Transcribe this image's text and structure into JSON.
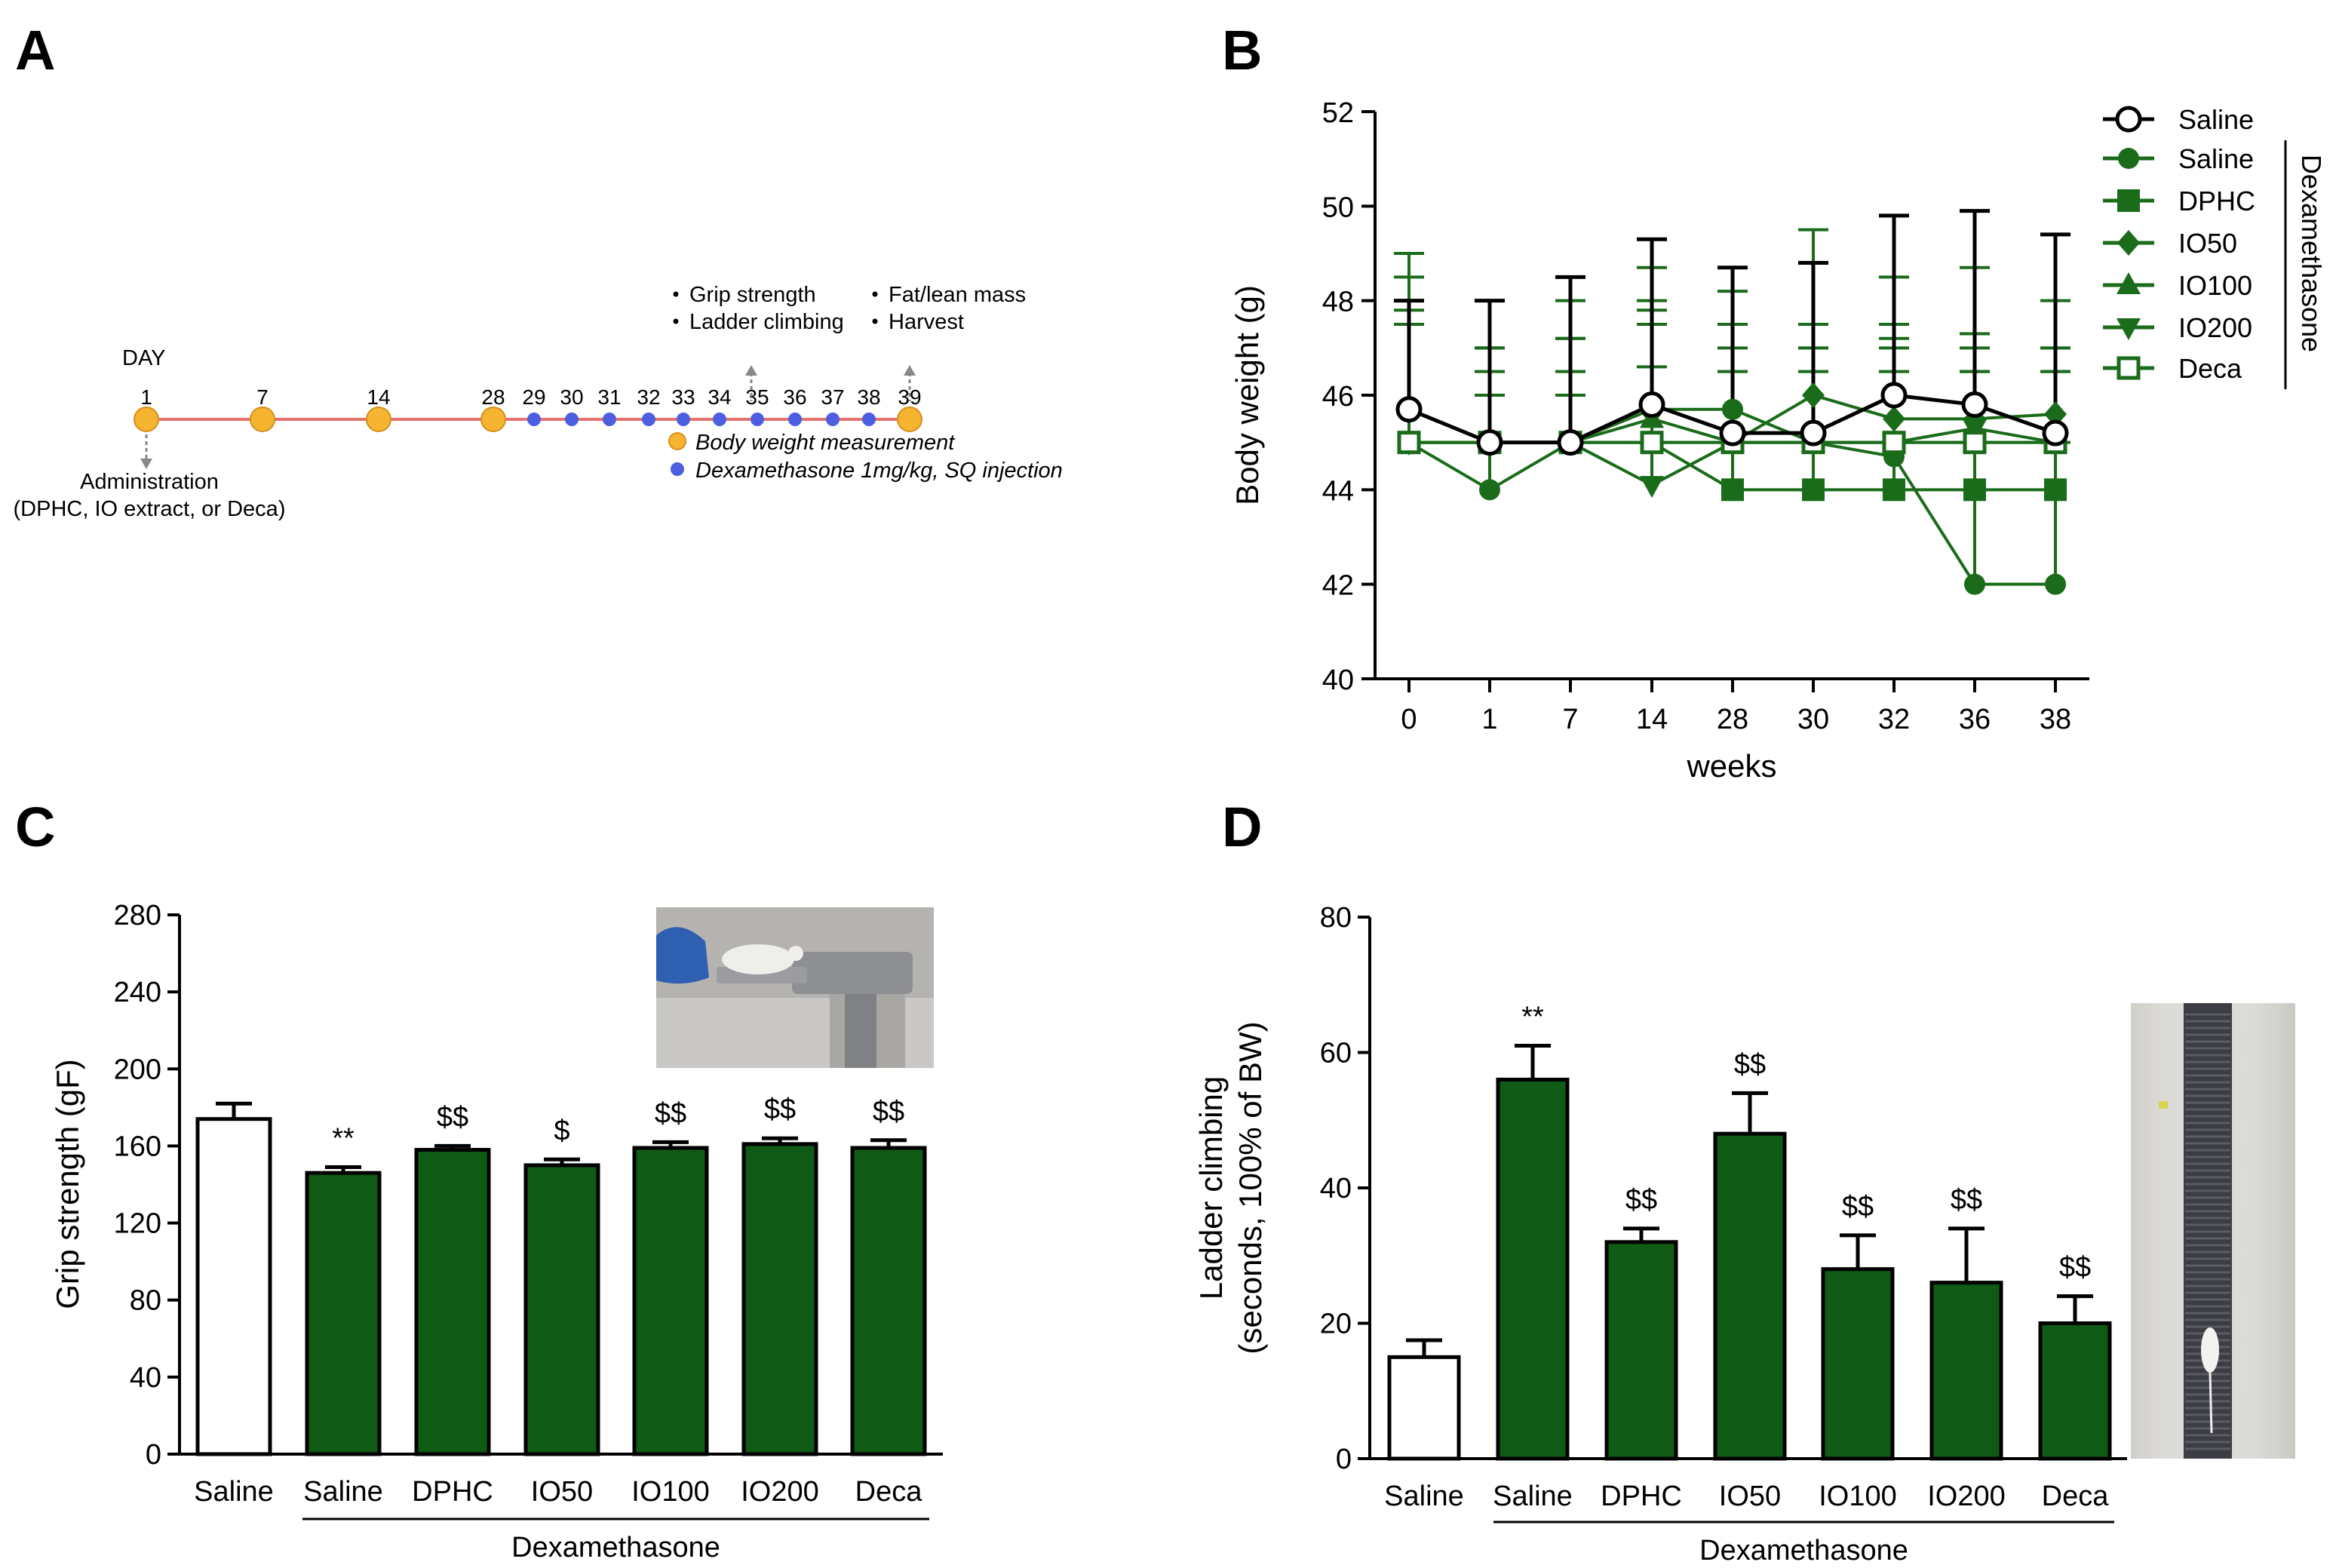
{
  "panels": {
    "a": "A",
    "b": "B",
    "c": "C",
    "d": "D"
  },
  "colors": {
    "green": "#1a6b1a",
    "darkGreen": "#0f5a14",
    "timeline": "#e8716b",
    "orangeDot": "#f6b431",
    "blueDot": "#4c5fe0",
    "black": "#000000"
  },
  "timeline": {
    "day_label": "DAY",
    "days": [
      {
        "label": "1",
        "kind": "orange"
      },
      {
        "label": "7",
        "kind": "orange"
      },
      {
        "label": "14",
        "kind": "orange"
      },
      {
        "label": "28",
        "kind": "orange"
      },
      {
        "label": "29",
        "kind": "blue"
      },
      {
        "label": "30",
        "kind": "blue"
      },
      {
        "label": "31",
        "kind": "blue"
      },
      {
        "label": "32",
        "kind": "blue"
      },
      {
        "label": "33",
        "kind": "blue"
      },
      {
        "label": "34",
        "kind": "blue"
      },
      {
        "label": "35",
        "kind": "blue"
      },
      {
        "label": "36",
        "kind": "blue"
      },
      {
        "label": "37",
        "kind": "blue"
      },
      {
        "label": "38",
        "kind": "blue"
      },
      {
        "label": "39",
        "kind": "orange"
      }
    ],
    "administration_label": "Administration",
    "administration_sub": "(DPHC, IO extract, or Deca)",
    "notes_day35": [
      "Grip strength",
      "Ladder climbing"
    ],
    "notes_day39": [
      "Fat/lean mass",
      "Harvest"
    ],
    "legend_body_weight": "Body weight measurement",
    "legend_dexa": "Dexamethasone 1mg/kg, SQ injection"
  },
  "chart_data": [
    {
      "id": "B",
      "type": "line",
      "title": "",
      "xlabel": "weeks",
      "ylabel": "Body weight (g)",
      "categories": [
        "0",
        "1",
        "7",
        "14",
        "28",
        "30",
        "32",
        "36",
        "38"
      ],
      "ylim": [
        40,
        52
      ],
      "yticks": [
        40,
        42,
        44,
        46,
        48,
        50,
        52
      ],
      "legend_position": "right",
      "legend_group_label": "Dexamethasone",
      "series": [
        {
          "name": "Saline",
          "marker": "open-circle",
          "color": "#000000",
          "values": [
            45.7,
            45.0,
            45.0,
            45.8,
            45.2,
            45.2,
            46.0,
            45.8,
            45.2
          ],
          "err": [
            2.3,
            3.0,
            3.5,
            3.5,
            3.5,
            3.6,
            3.8,
            4.1,
            4.2
          ]
        },
        {
          "name": "Saline",
          "marker": "filled-circle",
          "color": "#1a6b1a",
          "values": [
            45.0,
            44.0,
            45.0,
            45.7,
            45.7,
            45.0,
            44.7,
            42.0,
            42.0
          ],
          "err": [
            3.0,
            3.0,
            3.0,
            3.0,
            2.5,
            2.5,
            2.5,
            3.0,
            3.0
          ]
        },
        {
          "name": "DPHC",
          "marker": "filled-square",
          "color": "#1a6b1a",
          "values": [
            45.0,
            45.0,
            45.0,
            45.0,
            44.0,
            44.0,
            44.0,
            44.0,
            44.0
          ],
          "err": [
            2.5,
            2.0,
            2.2,
            2.5,
            2.5,
            2.5,
            2.5,
            2.5,
            2.5
          ]
        },
        {
          "name": "IO50",
          "marker": "filled-diamond",
          "color": "#1a6b1a",
          "values": [
            45.0,
            45.0,
            45.0,
            45.0,
            45.0,
            46.0,
            45.5,
            45.5,
            45.6
          ],
          "err": [
            2.8,
            2.0,
            2.2,
            2.8,
            2.5,
            3.5,
            3.0,
            3.2,
            2.4
          ]
        },
        {
          "name": "IO100",
          "marker": "filled-triangle-up",
          "color": "#1a6b1a",
          "values": [
            45.0,
            45.0,
            45.0,
            45.5,
            45.0,
            45.0,
            45.0,
            45.0,
            45.0
          ],
          "err": [
            3.5,
            1.0,
            1.0,
            2.5,
            2.5,
            2.5,
            2.5,
            2.0,
            2.0
          ]
        },
        {
          "name": "IO200",
          "marker": "filled-triangle-down",
          "color": "#1a6b1a",
          "values": [
            45.0,
            45.0,
            45.0,
            44.1,
            45.0,
            45.0,
            45.0,
            45.3,
            45.0
          ],
          "err": [
            4.0,
            1.0,
            1.0,
            2.5,
            2.5,
            2.0,
            2.5,
            2.0,
            2.0
          ]
        },
        {
          "name": "Deca",
          "marker": "open-square",
          "color": "#1a6b1a",
          "values": [
            45.0,
            45.0,
            45.0,
            45.0,
            45.0,
            45.0,
            45.0,
            45.0,
            45.0
          ],
          "err": [
            2.5,
            1.5,
            1.5,
            2.5,
            2.0,
            2.0,
            2.0,
            1.5,
            1.5
          ]
        }
      ]
    },
    {
      "id": "C",
      "type": "bar",
      "title": "",
      "xlabel": "",
      "ylabel": "Grip strength (gF)",
      "categories": [
        "Saline",
        "Saline",
        "DPHC",
        "IO50",
        "IO100",
        "IO200",
        "Deca"
      ],
      "values": [
        174,
        146,
        158,
        150,
        159,
        161,
        159
      ],
      "err": [
        8,
        3,
        2,
        3,
        3,
        3,
        4
      ],
      "annotations": [
        "",
        "**",
        "$$",
        "$",
        "$$",
        "$$",
        "$$"
      ],
      "fills": [
        "#ffffff",
        "#0f5a14",
        "#0f5a14",
        "#0f5a14",
        "#0f5a14",
        "#0f5a14",
        "#0f5a14"
      ],
      "group_label": "Dexamethasone",
      "ylim": [
        0,
        280
      ],
      "yticks": [
        0,
        40,
        80,
        120,
        160,
        200,
        240,
        280
      ]
    },
    {
      "id": "D",
      "type": "bar",
      "title": "",
      "xlabel": "",
      "ylabel": "Ladder climbing",
      "ylabel2": "(seconds, 100% of BW)",
      "categories": [
        "Saline",
        "Saline",
        "DPHC",
        "IO50",
        "IO100",
        "IO200",
        "Deca"
      ],
      "values": [
        15,
        56,
        32,
        48,
        28,
        26,
        20
      ],
      "err": [
        2.5,
        5,
        2,
        6,
        5,
        8,
        4
      ],
      "annotations": [
        "",
        "**",
        "$$",
        "$$",
        "$$",
        "$$",
        "$$"
      ],
      "fills": [
        "#ffffff",
        "#0f5a14",
        "#0f5a14",
        "#0f5a14",
        "#0f5a14",
        "#0f5a14",
        "#0f5a14"
      ],
      "group_label": "Dexamethasone",
      "ylim": [
        0,
        80
      ],
      "yticks": [
        0,
        20,
        40,
        60,
        80
      ]
    }
  ]
}
